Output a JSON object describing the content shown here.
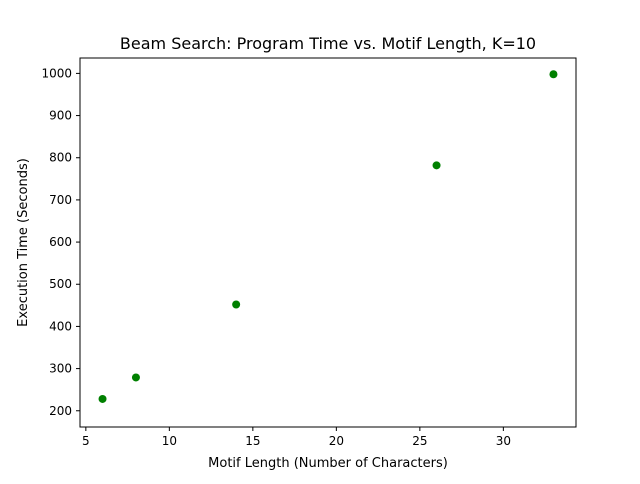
{
  "chart_data": {
    "type": "scatter",
    "title": "Beam Search: Program Time vs. Motif Length, K=10",
    "xlabel": "Motif Length (Number of Characters)",
    "ylabel": "Execution Time (Seconds)",
    "xlim": [
      4.65,
      34.35
    ],
    "ylim": [
      161.5,
      1036.5
    ],
    "x_ticks": [
      5,
      10,
      15,
      20,
      25,
      30
    ],
    "y_ticks": [
      200,
      300,
      400,
      500,
      600,
      700,
      800,
      900,
      1000
    ],
    "grid": false,
    "series": [
      {
        "color": "#008000",
        "points": [
          {
            "x": 6,
            "y": 228
          },
          {
            "x": 8,
            "y": 279
          },
          {
            "x": 14,
            "y": 452
          },
          {
            "x": 26,
            "y": 782
          },
          {
            "x": 33,
            "y": 998
          }
        ]
      }
    ]
  }
}
